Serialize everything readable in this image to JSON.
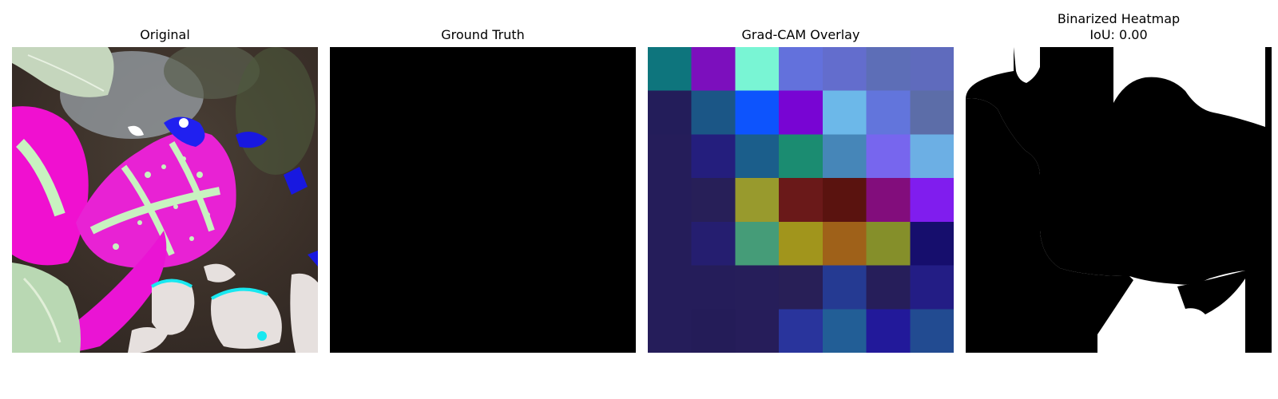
{
  "panels": [
    {
      "title": "Original",
      "image": "leaf-photo-false-color"
    },
    {
      "title": "Ground Truth",
      "image": "empty-black-mask"
    },
    {
      "title": "Grad-CAM Overlay",
      "image": "heatmap-overlay-7x7",
      "grid": [
        [
          "#0e757d",
          "#7c0fbd",
          "#79f5d4",
          "#6371dc",
          "#636dcd",
          "#5d6eb7",
          "#5f6bbd"
        ],
        [
          "#231d5a",
          "#1b5686",
          "#0d54fd",
          "#7805d3",
          "#6cb8e9",
          "#6275dc",
          "#5c6da8"
        ],
        [
          "#251d5a",
          "#241e7d",
          "#1b5e8b",
          "#1b8c71",
          "#4686b8",
          "#7766ee",
          "#6cafe4"
        ],
        [
          "#251d5a",
          "#271f58",
          "#989a2d",
          "#6a1919",
          "#5a130f",
          "#820d7c",
          "#801dee"
        ],
        [
          "#251d5a",
          "#251e70",
          "#459c78",
          "#a1951c",
          "#9f6119",
          "#858f2a",
          "#160e6d"
        ],
        [
          "#251d5a",
          "#251d5a",
          "#261e5a",
          "#281f57",
          "#253a92",
          "#261e5a",
          "#231d85"
        ],
        [
          "#251d5a",
          "#241c58",
          "#261d5a",
          "#29349c",
          "#225e96",
          "#22199a",
          "#224b91"
        ]
      ]
    },
    {
      "title_lines": [
        "Binarized Heatmap",
        "IoU: 0.00"
      ],
      "image": "binary-mask"
    }
  ]
}
